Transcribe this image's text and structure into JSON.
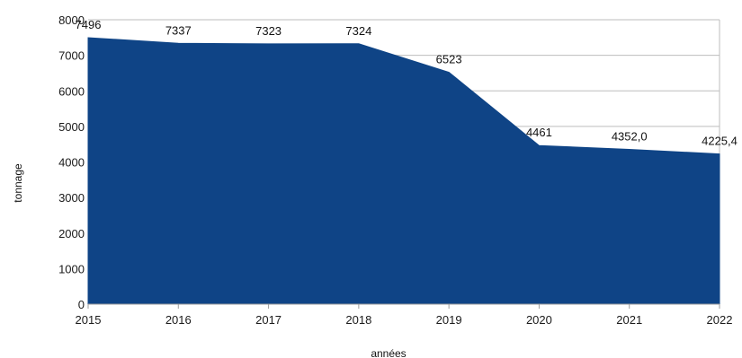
{
  "chart_data": {
    "type": "area",
    "title": "",
    "xlabel": "années",
    "ylabel": "tonnage",
    "x": [
      "2015",
      "2016",
      "2017",
      "2018",
      "2019",
      "2020",
      "2021",
      "2022"
    ],
    "y": [
      7496,
      7337,
      7323,
      7324,
      6523,
      4461,
      4352.0,
      4225.4
    ],
    "data_labels": [
      "7496",
      "7337",
      "7323",
      "7324",
      "6523",
      "4461",
      "4352,0",
      "4225,4"
    ],
    "ylim": [
      0,
      8000
    ],
    "yticks": [
      0,
      1000,
      2000,
      3000,
      4000,
      5000,
      6000,
      7000,
      8000
    ],
    "grid": true,
    "legend": "none",
    "colors": {
      "area": "#0f4486",
      "grid": "#bdbdbd",
      "text": "#111111"
    }
  }
}
